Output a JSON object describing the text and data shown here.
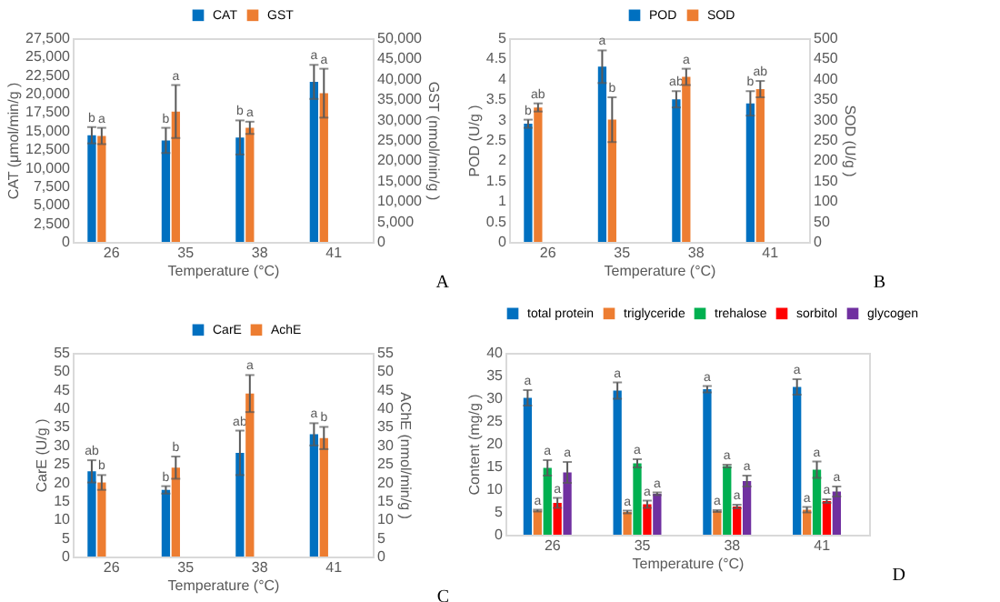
{
  "chart_data": [
    {
      "type": "bar",
      "categories": [
        "26",
        "35",
        "38",
        "41"
      ],
      "xlabel": "Temperature (°C)",
      "ylabel": "CAT (μmol/min/g )",
      "y2label": "GST (nmol/min/g )",
      "ylim": [
        0,
        27500
      ],
      "yticks": [
        0,
        {
          "value": 2500,
          "label": "2,500"
        },
        {
          "value": 5000,
          "label": "5,000"
        },
        {
          "value": 7500,
          "label": "7,500"
        },
        {
          "value": 10000,
          "label": "10,000"
        },
        {
          "value": 12500,
          "label": "12,500"
        },
        {
          "value": 15000,
          "label": "15,000"
        },
        {
          "value": 17500,
          "label": "17,500"
        },
        {
          "value": 20000,
          "label": "20,000"
        },
        {
          "value": 22500,
          "label": "22,500"
        },
        {
          "value": 25000,
          "label": "25,000"
        },
        {
          "value": 27500,
          "label": "27,500"
        }
      ],
      "y2lim": [
        0,
        50000
      ],
      "y2ticks": [
        0,
        {
          "value": 5000,
          "label": "5,000"
        },
        {
          "value": 10000,
          "label": "10,000"
        },
        {
          "value": 15000,
          "label": "15,000"
        },
        {
          "value": 20000,
          "label": "20,000"
        },
        {
          "value": 25000,
          "label": "25,000"
        },
        {
          "value": 30000,
          "label": "30,000"
        },
        {
          "value": 35000,
          "label": "35,000"
        },
        {
          "value": 40000,
          "label": "40,000"
        },
        {
          "value": 45000,
          "label": "45,000"
        },
        {
          "value": 50000,
          "label": "50,000"
        }
      ],
      "series": [
        {
          "name": "CAT",
          "color": "#0070c0",
          "values": [
            14400,
            13700,
            14100,
            21600
          ],
          "errors": [
            1100,
            1700,
            2300,
            2300
          ],
          "value_labels": [
            "b",
            "b",
            "b",
            "a"
          ]
        },
        {
          "name": "GST",
          "color": "#ed7d31",
          "axis": "y2",
          "values": [
            26000,
            32000,
            28000,
            36500
          ],
          "errors": [
            2000,
            6500,
            1500,
            6000
          ],
          "value_labels": [
            "a",
            "a",
            "a",
            "a"
          ]
        }
      ],
      "legend": "top right",
      "annotations": [
        "A"
      ]
    },
    {
      "type": "bar",
      "categories": [
        "26",
        "35",
        "38",
        "41"
      ],
      "xlabel": "Temperature (°C)",
      "ylabel": "POD (U/g )",
      "y2label": "SOD (U/g )",
      "ylim": [
        0,
        5
      ],
      "yticks": [
        0,
        0.5,
        1,
        1.5,
        2,
        2.5,
        3,
        3.5,
        4,
        4.5,
        5
      ],
      "y2lim": [
        0,
        500
      ],
      "y2ticks": [
        0,
        50,
        100,
        150,
        200,
        250,
        300,
        350,
        400,
        450,
        500
      ],
      "series": [
        {
          "name": "POD",
          "color": "#0070c0",
          "values": [
            2.9,
            4.3,
            3.5,
            3.4
          ],
          "errors": [
            0.1,
            0.4,
            0.2,
            0.3
          ],
          "value_labels": [
            "b",
            "a",
            "ab",
            "b"
          ]
        },
        {
          "name": "SOD",
          "color": "#ed7d31",
          "axis": "y2",
          "values": [
            330,
            300,
            405,
            375
          ],
          "errors": [
            10,
            55,
            20,
            20
          ],
          "value_labels": [
            "ab",
            "b",
            "a",
            "ab"
          ]
        }
      ],
      "legend": "top right",
      "annotations": [
        "B"
      ]
    },
    {
      "type": "bar",
      "categories": [
        "26",
        "35",
        "38",
        "41"
      ],
      "xlabel": "Temperature (°C)",
      "ylabel": "CarE (U/g )",
      "y2label": "AChE (nmol/min/g )",
      "ylim": [
        0,
        55
      ],
      "yticks": [
        0,
        5,
        10,
        15,
        20,
        25,
        30,
        35,
        40,
        45,
        50,
        55
      ],
      "y2lim": [
        0,
        55
      ],
      "y2ticks": [
        0,
        5,
        10,
        15,
        20,
        25,
        30,
        35,
        40,
        45,
        50,
        55
      ],
      "series": [
        {
          "name": "CarE",
          "color": "#0070c0",
          "values": [
            23,
            18,
            28,
            33
          ],
          "errors": [
            3,
            1,
            6,
            3
          ],
          "value_labels": [
            "ab",
            "b",
            "ab",
            "a"
          ]
        },
        {
          "name": "AchE",
          "color": "#ed7d31",
          "axis": "y2",
          "values": [
            20,
            24,
            44,
            32
          ],
          "errors": [
            2,
            3,
            5,
            3
          ],
          "value_labels": [
            "b",
            "b",
            "a",
            "b"
          ]
        }
      ],
      "legend": "top right",
      "annotations": [
        "C"
      ]
    },
    {
      "type": "bar",
      "categories": [
        "26",
        "35",
        "38",
        "41"
      ],
      "xlabel": "Temperature (°C)",
      "ylabel": "Content (mg/g )",
      "ylim": [
        0,
        40
      ],
      "yticks": [
        0,
        5,
        10,
        15,
        20,
        25,
        30,
        35,
        40
      ],
      "series": [
        {
          "name": "total protein",
          "color": "#0070c0",
          "values": [
            30.1,
            31.7,
            32.0,
            32.5
          ],
          "errors": [
            1.7,
            1.8,
            0.7,
            1.7
          ],
          "value_labels": [
            "a",
            "a",
            "a",
            "a"
          ]
        },
        {
          "name": "triglyceride",
          "color": "#ed7d31",
          "values": [
            5.3,
            5.0,
            5.2,
            5.5
          ],
          "errors": [
            0.2,
            0.3,
            0.2,
            0.6
          ],
          "value_labels": [
            "a",
            "a",
            "a",
            "a"
          ]
        },
        {
          "name": "trehalose",
          "color": "#00b050",
          "values": [
            14.7,
            15.7,
            15.1,
            14.3
          ],
          "errors": [
            1.7,
            0.9,
            0.3,
            1.8
          ],
          "value_labels": [
            "a",
            "a",
            "a",
            "a"
          ]
        },
        {
          "name": "sorbitol",
          "color": "#ff0000",
          "values": [
            7.0,
            6.7,
            6.2,
            7.4
          ],
          "errors": [
            1.1,
            0.8,
            0.4,
            0.4
          ],
          "value_labels": [
            "a",
            "a",
            "a",
            "a"
          ]
        },
        {
          "name": "glycogen",
          "color": "#7030a0",
          "values": [
            13.7,
            9.0,
            11.8,
            9.5
          ],
          "errors": [
            2.3,
            0.3,
            1.2,
            1.1
          ],
          "value_labels": [
            "a",
            "a",
            "a",
            "a"
          ]
        }
      ],
      "legend": "top",
      "annotations": [
        "D"
      ]
    }
  ]
}
